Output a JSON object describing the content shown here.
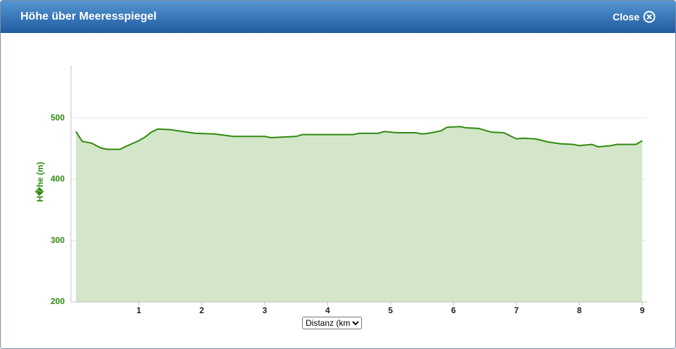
{
  "header": {
    "title": "Höhe über Meeresspiegel",
    "close": "Close"
  },
  "distance_select": "Distanz (km)",
  "chart_data": {
    "type": "area",
    "y_label": "H�he (m)",
    "x": [
      0,
      0.1,
      0.25,
      0.4,
      0.5,
      0.7,
      0.8,
      1.0,
      1.1,
      1.2,
      1.3,
      1.5,
      1.7,
      1.9,
      2.2,
      2.5,
      3.0,
      3.1,
      3.5,
      3.6,
      4.0,
      4.4,
      4.5,
      4.8,
      4.9,
      5.1,
      5.4,
      5.5,
      5.6,
      5.8,
      5.9,
      6.1,
      6.2,
      6.4,
      6.6,
      6.8,
      7.0,
      7.1,
      7.3,
      7.5,
      7.7,
      7.9,
      8.0,
      8.2,
      8.3,
      8.5,
      8.6,
      8.9,
      9.0
    ],
    "values": [
      478,
      462,
      459,
      451,
      449,
      449,
      454,
      463,
      469,
      477,
      482,
      481,
      478,
      475,
      474,
      470,
      470,
      468,
      470,
      473,
      473,
      473,
      475,
      475,
      478,
      476,
      476,
      474,
      475,
      479,
      485,
      486,
      484,
      483,
      477,
      476,
      466,
      467,
      466,
      461,
      458,
      457,
      455,
      457,
      453,
      455,
      457,
      457,
      463
    ],
    "color": "#2f8a0f",
    "fill": "#d3e6ca",
    "xlim": [
      0,
      9
    ],
    "xticks": [
      1,
      2,
      3,
      4,
      5,
      6,
      7,
      8,
      9
    ],
    "ylim": [
      200,
      586
    ],
    "yticks": [
      200,
      300,
      400,
      500
    ],
    "grid": true
  }
}
